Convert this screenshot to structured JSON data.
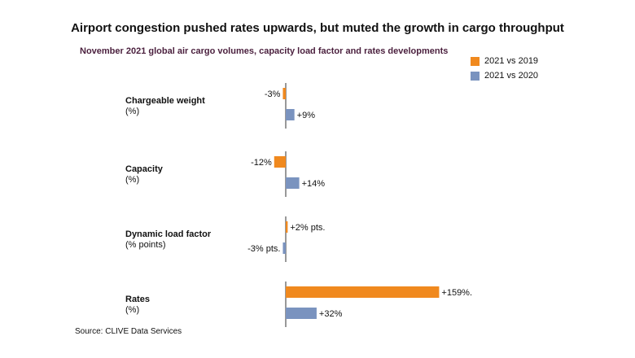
{
  "chart_data": {
    "type": "bar",
    "orientation": "horizontal",
    "title": "Airport congestion pushed rates upwards, but muted the growth in cargo throughput",
    "subtitle": "November 2021 global air cargo volumes, capacity load factor and rates developments",
    "categories": [
      {
        "name": "Chargeable weight",
        "unit": "(%)"
      },
      {
        "name": "Capacity",
        "unit": "(%)"
      },
      {
        "name": "Dynamic load factor",
        "unit": "(% points)"
      },
      {
        "name": "Rates",
        "unit": "(%)"
      }
    ],
    "series": [
      {
        "name": "2021 vs 2019",
        "color": "#f0891e",
        "values": [
          -3,
          -12,
          2,
          159
        ],
        "labels": [
          "-3%",
          "-12%",
          "+2% pts.",
          "+159%."
        ]
      },
      {
        "name": "2021 vs 2020",
        "color": "#7a93bf",
        "values": [
          9,
          14,
          -3,
          32
        ],
        "labels": [
          "+9%",
          "+14%",
          "-3% pts.",
          "+32%"
        ]
      }
    ],
    "legend_position": "top-right",
    "source": "Source: CLIVE Data Services"
  }
}
